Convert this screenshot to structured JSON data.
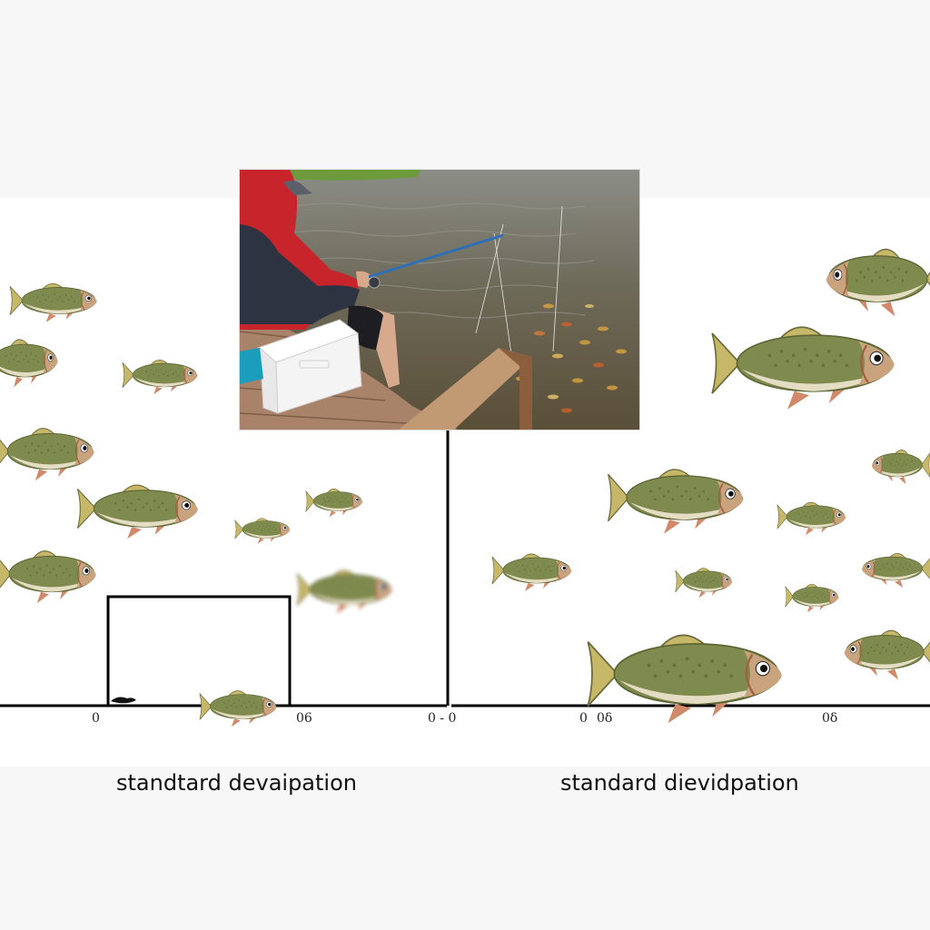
{
  "axes": [
    {
      "tick_labels": [
        {
          "label": "0"
        },
        {
          "label": "06"
        },
        {
          "label": "0 - 0"
        }
      ],
      "xlabel": "standtard devaipation"
    },
    {
      "tick_labels": [
        {
          "label": "0"
        },
        {
          "label": "0δ"
        },
        {
          "label": "0δ"
        }
      ],
      "xlabel": "standard dievidpation"
    }
  ],
  "photo": {
    "scene": "angler-fishing-from-dock",
    "colors": {
      "water": "#6e6550",
      "hoodie": "#c8242c",
      "jacket": "#2e3342",
      "dock": "#b08766",
      "cooler": "#f4f4f4"
    }
  },
  "fish_icons": "fish-icon",
  "colors": {
    "background": "#f7f7f7",
    "panel": "#ffffff",
    "axis": "#000000",
    "fish_body": "#7f8a4e",
    "fish_belly": "#e4ddc4",
    "fish_fin": "#c7b768"
  }
}
